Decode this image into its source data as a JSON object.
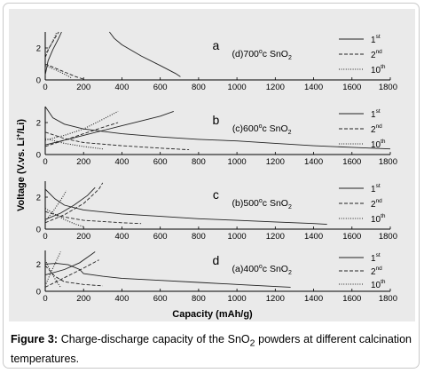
{
  "caption": {
    "label": "Figure 3:",
    "text": "Charge-discharge capacity of the SnO",
    "sub": "2",
    "text_after": " powders at different calcination temperatures."
  },
  "chart_data": {
    "type": "line",
    "xlabel": "Capacity (mAh/g)",
    "ylabel_parts": {
      "pre": "Voltage (V.vs. Li",
      "sup": "+",
      "post": "/Li)"
    },
    "xlim": [
      0,
      1800
    ],
    "ylim": [
      0,
      3
    ],
    "x_ticks": [
      0,
      200,
      400,
      600,
      800,
      1000,
      1200,
      1400,
      1600,
      1800
    ],
    "y_ticks": [
      0,
      2
    ],
    "legend": [
      {
        "n": "1",
        "sup": "st",
        "style": "solid"
      },
      {
        "n": "2",
        "sup": "nd",
        "style": "dashed"
      },
      {
        "n": "10",
        "sup": "th",
        "style": "dotted"
      }
    ],
    "panels": [
      {
        "letter": "a",
        "label_pre": "(d)700",
        "label_sup": "o",
        "label_mid": "c SnO",
        "label_sub": "2",
        "series": [
          {
            "name": "1st",
            "style": "solid",
            "points": [
              [
                0,
                0.3
              ],
              [
                15,
                1.2
              ],
              [
                40,
                1.9
              ],
              [
                70,
                2.6
              ],
              [
                85,
                3.0
              ]
            ]
          },
          {
            "name": "1st",
            "style": "solid",
            "points": [
              [
                335,
                3.0
              ],
              [
                360,
                2.6
              ],
              [
                400,
                2.2
              ],
              [
                500,
                1.5
              ],
              [
                600,
                0.9
              ],
              [
                680,
                0.4
              ],
              [
                705,
                0.2
              ]
            ]
          },
          {
            "name": "2nd",
            "style": "dashed",
            "points": [
              [
                0,
                1.4
              ],
              [
                20,
                2.0
              ],
              [
                50,
                2.6
              ],
              [
                70,
                3.0
              ]
            ]
          },
          {
            "name": "2nd",
            "style": "dashed",
            "points": [
              [
                0,
                1.0
              ],
              [
                40,
                0.8
              ],
              [
                100,
                0.5
              ],
              [
                160,
                0.2
              ],
              [
                200,
                0.05
              ]
            ]
          },
          {
            "name": "10th",
            "style": "dotted",
            "points": [
              [
                0,
                1.6
              ],
              [
                30,
                2.2
              ],
              [
                50,
                2.7
              ],
              [
                60,
                3.0
              ]
            ]
          },
          {
            "name": "10th",
            "style": "dotted",
            "points": [
              [
                0,
                0.9
              ],
              [
                60,
                0.6
              ],
              [
                110,
                0.3
              ],
              [
                140,
                0.1
              ]
            ]
          }
        ]
      },
      {
        "letter": "b",
        "label_pre": "(c)600",
        "label_sup": "o",
        "label_mid": "c SnO",
        "label_sub": "2",
        "series": [
          {
            "name": "1st",
            "style": "solid",
            "points": [
              [
                0,
                3.0
              ],
              [
                40,
                2.3
              ],
              [
                100,
                1.9
              ],
              [
                200,
                1.6
              ],
              [
                400,
                1.3
              ],
              [
                600,
                1.1
              ],
              [
                800,
                0.95
              ],
              [
                1000,
                0.85
              ],
              [
                1200,
                0.7
              ],
              [
                1400,
                0.55
              ],
              [
                1600,
                0.45
              ],
              [
                1800,
                0.35
              ]
            ]
          },
          {
            "name": "1st",
            "style": "solid",
            "points": [
              [
                0,
                0.6
              ],
              [
                100,
                0.9
              ],
              [
                200,
                1.2
              ],
              [
                300,
                1.5
              ],
              [
                400,
                1.8
              ],
              [
                500,
                2.1
              ],
              [
                600,
                2.4
              ],
              [
                670,
                2.7
              ]
            ]
          },
          {
            "name": "2nd",
            "style": "dashed",
            "points": [
              [
                0,
                1.4
              ],
              [
                100,
                1.0
              ],
              [
                200,
                0.75
              ],
              [
                400,
                0.55
              ],
              [
                600,
                0.4
              ],
              [
                750,
                0.3
              ]
            ]
          },
          {
            "name": "2nd",
            "style": "dashed",
            "points": [
              [
                0,
                0.5
              ],
              [
                100,
                0.9
              ],
              [
                200,
                1.3
              ],
              [
                300,
                1.7
              ],
              [
                380,
                2.0
              ]
            ]
          },
          {
            "name": "10th",
            "style": "dotted",
            "points": [
              [
                0,
                0.9
              ],
              [
                100,
                1.2
              ],
              [
                200,
                1.6
              ],
              [
                300,
                2.2
              ],
              [
                380,
                2.7
              ]
            ]
          },
          {
            "name": "10th",
            "style": "dotted",
            "points": [
              [
                0,
                1.0
              ],
              [
                100,
                0.7
              ],
              [
                200,
                0.5
              ],
              [
                300,
                0.35
              ]
            ]
          }
        ]
      },
      {
        "letter": "c",
        "label_pre": "(b)500",
        "label_sup": "o",
        "label_mid": "c SnO",
        "label_sub": "2",
        "series": [
          {
            "name": "1st",
            "style": "solid",
            "points": [
              [
                0,
                2.5
              ],
              [
                50,
                1.9
              ],
              [
                100,
                1.5
              ],
              [
                200,
                1.2
              ],
              [
                400,
                0.95
              ],
              [
                600,
                0.8
              ],
              [
                800,
                0.65
              ],
              [
                1000,
                0.55
              ],
              [
                1200,
                0.45
              ],
              [
                1400,
                0.35
              ],
              [
                1470,
                0.3
              ]
            ]
          },
          {
            "name": "1st",
            "style": "solid",
            "points": [
              [
                0,
                0.6
              ],
              [
                80,
                1.0
              ],
              [
                150,
                1.5
              ],
              [
                220,
                2.1
              ],
              [
                260,
                2.6
              ]
            ]
          },
          {
            "name": "2nd",
            "style": "dashed",
            "points": [
              [
                0,
                1.1
              ],
              [
                80,
                0.8
              ],
              [
                200,
                0.55
              ],
              [
                400,
                0.4
              ],
              [
                500,
                0.35
              ]
            ]
          },
          {
            "name": "2nd",
            "style": "dashed",
            "points": [
              [
                0,
                0.4
              ],
              [
                100,
                0.9
              ],
              [
                200,
                1.6
              ],
              [
                280,
                2.5
              ],
              [
                300,
                2.9
              ]
            ]
          },
          {
            "name": "10th",
            "style": "dotted",
            "points": [
              [
                0,
                1.3
              ],
              [
                40,
                1.0
              ],
              [
                100,
                0.6
              ],
              [
                160,
                0.3
              ],
              [
                200,
                0.15
              ]
            ]
          },
          {
            "name": "10th",
            "style": "dotted",
            "points": [
              [
                0,
                0.5
              ],
              [
                40,
                1.1
              ],
              [
                80,
                1.8
              ],
              [
                110,
                2.4
              ]
            ]
          }
        ]
      },
      {
        "letter": "d",
        "label_pre": "(a)400",
        "label_sup": "o",
        "label_mid": "c SnO",
        "label_sub": "2",
        "series": [
          {
            "name": "1st",
            "style": "solid",
            "points": [
              [
                0,
                2.0
              ],
              [
                60,
                2.05
              ],
              [
                120,
                1.95
              ],
              [
                180,
                1.6
              ],
              [
                200,
                1.3
              ],
              [
                300,
                1.1
              ],
              [
                400,
                0.95
              ],
              [
                600,
                0.8
              ],
              [
                800,
                0.65
              ],
              [
                1000,
                0.5
              ],
              [
                1200,
                0.35
              ],
              [
                1280,
                0.3
              ]
            ]
          },
          {
            "name": "1st",
            "style": "solid",
            "points": [
              [
                0,
                1.2
              ],
              [
                100,
                1.6
              ],
              [
                180,
                2.1
              ],
              [
                240,
                2.7
              ],
              [
                260,
                2.9
              ]
            ]
          },
          {
            "name": "2nd",
            "style": "dashed",
            "points": [
              [
                0,
                1.9
              ],
              [
                50,
                1.1
              ],
              [
                100,
                0.7
              ],
              [
                200,
                0.5
              ],
              [
                300,
                0.4
              ]
            ]
          },
          {
            "name": "2nd",
            "style": "dashed",
            "points": [
              [
                0,
                0.3
              ],
              [
                100,
                1.0
              ],
              [
                200,
                1.7
              ],
              [
                280,
                2.3
              ]
            ]
          },
          {
            "name": "10th",
            "style": "dotted",
            "points": [
              [
                0,
                2.3
              ],
              [
                30,
                1.4
              ],
              [
                60,
                0.7
              ],
              [
                80,
                0.3
              ]
            ]
          },
          {
            "name": "10th",
            "style": "dotted",
            "points": [
              [
                0,
                0.4
              ],
              [
                30,
                1.4
              ],
              [
                60,
                2.3
              ],
              [
                80,
                2.9
              ]
            ]
          }
        ]
      }
    ]
  }
}
